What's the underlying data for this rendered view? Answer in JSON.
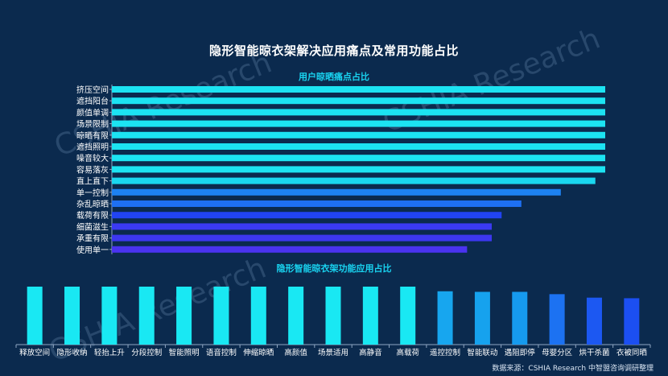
{
  "title": "隐形智能晾衣架解决应用痛点及常用功能占比",
  "source": "数据来源：CSHIA Research 中智盟咨询调研整理",
  "watermark": "CSHIA Research",
  "chart_data": [
    {
      "type": "bar",
      "orientation": "horizontal",
      "title": "用户晾晒痛点占比",
      "categories": [
        "挤压空间",
        "遮挡阳台",
        "颜值单调",
        "场景限制",
        "晾晒有限",
        "遮挡照明",
        "噪音较大",
        "容易落灰",
        "直上直下",
        "单一控制",
        "杂乱晾晒",
        "载荷有限",
        "细菌滋生",
        "承重有限",
        "使用单一"
      ],
      "values": [
        100,
        100,
        100,
        100,
        100,
        100,
        100,
        100,
        98,
        91,
        83,
        79,
        77,
        77,
        72
      ],
      "xlim": [
        0,
        100
      ],
      "colors": [
        "#1ce3f2",
        "#1ce3f2",
        "#1ce3f2",
        "#1ce3f2",
        "#1ce3f2",
        "#1ce3f2",
        "#1ce3f2",
        "#1ce3f2",
        "#1ad7f0",
        "#1d82f2",
        "#1e70f3",
        "#2144f2",
        "#3a3af2",
        "#3d37f0",
        "#4a33f0"
      ]
    },
    {
      "type": "bar",
      "title": "隐形智能晾衣架功能应用占比",
      "categories": [
        "释放空间",
        "隐形收纳",
        "轻抬上升",
        "分段控制",
        "智能照明",
        "语音控制",
        "伸缩晾晒",
        "高颜值",
        "场景适用",
        "高静音",
        "高载荷",
        "遥控控制",
        "智能联动",
        "遇阻即停",
        "母婴分区",
        "烘干杀菌",
        "衣被同晒"
      ],
      "values": [
        100,
        100,
        100,
        100,
        100,
        100,
        100,
        100,
        100,
        100,
        100,
        92,
        91,
        91,
        87,
        81,
        80
      ],
      "ylim": [
        0,
        100
      ],
      "colors": [
        "#19e8f3",
        "#19e8f3",
        "#19e8f3",
        "#19e8f3",
        "#19e8f3",
        "#19e8f3",
        "#19e8f3",
        "#19e8f3",
        "#19e8f3",
        "#19e8f3",
        "#19e8f3",
        "#17a6ef",
        "#16a2ee",
        "#169aee",
        "#1c72f2",
        "#1c58f2",
        "#1c4ff2"
      ]
    }
  ]
}
